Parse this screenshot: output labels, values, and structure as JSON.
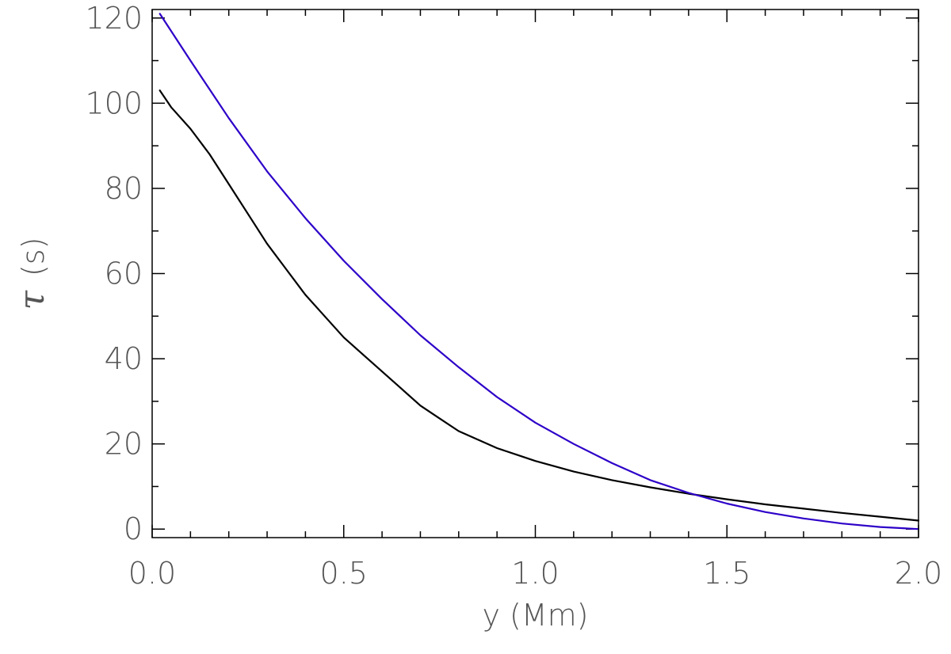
{
  "chart_data": {
    "type": "line",
    "xlabel": "y (Mm)",
    "ylabel": {
      "symbol": "τ",
      "unit": "(s)"
    },
    "xlim": [
      0.0,
      2.0
    ],
    "ylim": [
      -2,
      122
    ],
    "x_ticks": [
      0.0,
      0.5,
      1.0,
      1.5,
      2.0
    ],
    "x_tick_labels": [
      "0.0",
      "0.5",
      "1.0",
      "1.5",
      "2.0"
    ],
    "y_ticks": [
      0,
      20,
      40,
      60,
      80,
      100,
      120
    ],
    "y_tick_labels": [
      "0",
      "20",
      "40",
      "60",
      "80",
      "100",
      "120"
    ],
    "x_minor_step": 0.1,
    "y_minor_step": 10,
    "grid": false,
    "legend": "none",
    "series": [
      {
        "color": "#000000",
        "x": [
          0.02,
          0.05,
          0.1,
          0.15,
          0.2,
          0.25,
          0.3,
          0.35,
          0.4,
          0.45,
          0.5,
          0.55,
          0.6,
          0.65,
          0.7,
          0.75,
          0.8,
          0.85,
          0.9,
          0.95,
          1.0,
          1.1,
          1.2,
          1.3,
          1.4,
          1.5,
          1.6,
          1.7,
          1.8,
          1.9,
          2.0
        ],
        "y": [
          103,
          99,
          94,
          88,
          81,
          74,
          67,
          61,
          55,
          50,
          45,
          41,
          37,
          33,
          29,
          26,
          23,
          21,
          19,
          17.5,
          16,
          13.5,
          11.5,
          9.8,
          8.3,
          7,
          5.8,
          4.8,
          3.8,
          2.9,
          2
        ]
      },
      {
        "color": "#2d00c8",
        "x": [
          0.02,
          0.1,
          0.2,
          0.3,
          0.4,
          0.5,
          0.6,
          0.7,
          0.8,
          0.9,
          1.0,
          1.1,
          1.2,
          1.3,
          1.4,
          1.5,
          1.6,
          1.7,
          1.8,
          1.9,
          2.0
        ],
        "y": [
          121,
          110,
          96.5,
          84,
          73,
          63,
          54,
          45.5,
          38,
          31,
          25,
          20,
          15.5,
          11.5,
          8.5,
          6,
          4,
          2.5,
          1.3,
          0.5,
          0
        ]
      }
    ]
  }
}
